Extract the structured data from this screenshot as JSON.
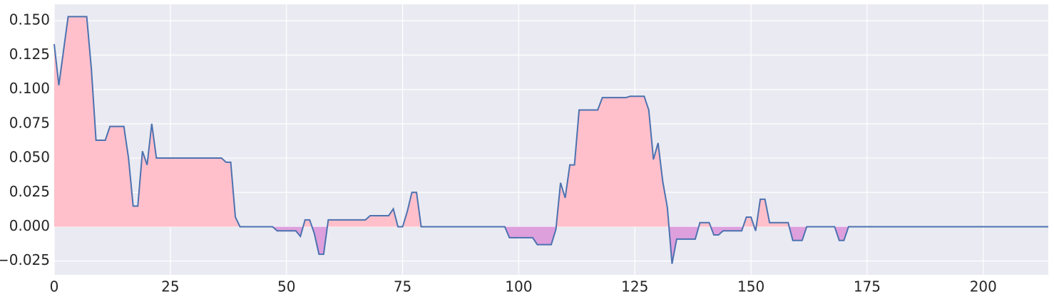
{
  "chart_data": {
    "type": "area",
    "x": [
      0,
      1,
      3,
      7,
      8,
      9,
      11,
      12,
      15,
      16,
      17,
      18,
      19,
      20,
      21,
      22,
      36,
      37,
      38,
      39,
      40,
      47,
      48,
      52,
      53,
      54,
      55,
      56,
      57,
      58,
      59,
      67,
      68,
      72,
      73,
      74,
      75,
      76,
      77,
      78,
      79,
      97,
      98,
      103,
      104,
      107,
      108,
      109,
      110,
      111,
      112,
      113,
      117,
      118,
      123,
      124,
      127,
      128,
      129,
      130,
      131,
      132,
      133,
      134,
      138,
      139,
      141,
      142,
      143,
      144,
      148,
      149,
      150,
      151,
      152,
      153,
      154,
      158,
      159,
      161,
      162,
      168,
      169,
      170,
      171,
      214
    ],
    "values": [
      0.133,
      0.103,
      0.153,
      0.153,
      0.115,
      0.063,
      0.063,
      0.073,
      0.073,
      0.05,
      0.015,
      0.015,
      0.055,
      0.045,
      0.075,
      0.05,
      0.05,
      0.047,
      0.047,
      0.007,
      0,
      0,
      -0.003,
      -0.003,
      -0.007,
      0.005,
      0.005,
      -0.005,
      -0.02,
      -0.02,
      0.005,
      0.005,
      0.008,
      0.008,
      0.013,
      0,
      0,
      0.011,
      0.025,
      0.025,
      0,
      0,
      -0.008,
      -0.008,
      -0.013,
      -0.013,
      -0.002,
      0.032,
      0.021,
      0.045,
      0.045,
      0.085,
      0.085,
      0.094,
      0.094,
      0.095,
      0.095,
      0.085,
      0.049,
      0.061,
      0.033,
      0.014,
      -0.027,
      -0.009,
      -0.009,
      0.003,
      0.003,
      -0.006,
      -0.006,
      -0.003,
      -0.003,
      0.007,
      0.007,
      -0.003,
      0.02,
      0.02,
      0.003,
      0.003,
      -0.01,
      -0.01,
      0,
      0,
      -0.01,
      -0.01,
      0,
      0
    ],
    "color": "#4c72b0",
    "positive_color": "#ffc0cb",
    "negative_color": "#dda0dd",
    "xlim": [
      0,
      214
    ],
    "ylim": [
      -0.035,
      0.162
    ],
    "xticks": [
      0,
      25,
      50,
      75,
      100,
      125,
      150,
      175,
      200
    ],
    "yticks": [
      {
        "value": -0.025,
        "label": "−0.025"
      },
      {
        "value": 0,
        "label": "0.000"
      },
      {
        "value": 0.025,
        "label": "0.025"
      },
      {
        "value": 0.05,
        "label": "0.050"
      },
      {
        "value": 0.075,
        "label": "0.075"
      },
      {
        "value": 0.1,
        "label": "0.100"
      },
      {
        "value": 0.125,
        "label": "0.125"
      },
      {
        "value": 0.15,
        "label": "0.150"
      }
    ],
    "grid": true
  }
}
